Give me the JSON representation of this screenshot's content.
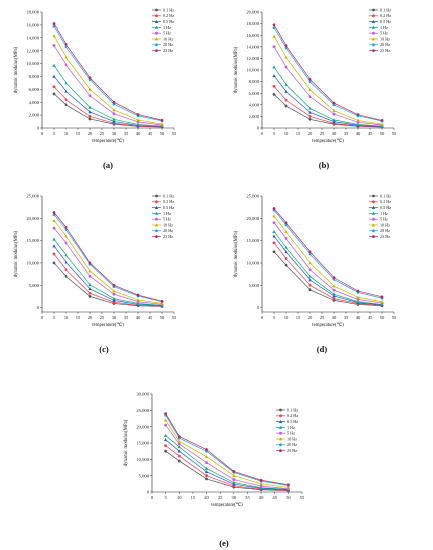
{
  "legend": [
    "0.1 Hz",
    "0.2 Hz",
    "0.5 Hz",
    "1 Hz",
    "5 Hz",
    "10 Hz",
    "20 Hz",
    "25 Hz"
  ],
  "colors": [
    "#555555",
    "#e8435a",
    "#2b59c3",
    "#17a689",
    "#c45ad9",
    "#c8b400",
    "#2ba0d8",
    "#b03060"
  ],
  "chart_data": [
    {
      "type": "line",
      "panel_label": "(a)",
      "xlabel": "temperature(℃)",
      "ylabel": "dynamic modulus(MPa)",
      "xlim": [
        0,
        55
      ],
      "ylim": [
        0,
        18000
      ],
      "xticks": [
        0,
        5,
        10,
        15,
        20,
        25,
        30,
        35,
        40,
        45,
        50,
        55
      ],
      "yticks": [
        0,
        2000,
        4000,
        6000,
        8000,
        10000,
        12000,
        14000,
        16000,
        18000
      ],
      "ytick_labels": [
        "0",
        "2,000",
        "4,000",
        "6,000",
        "8,000",
        "10,000",
        "12,000",
        "14,000",
        "16,000",
        "18,000"
      ],
      "x": [
        5,
        10,
        20,
        30,
        40,
        50
      ],
      "series": [
        {
          "name": "0.1 Hz",
          "values": [
            5300,
            3600,
            1400,
            600,
            250,
            150
          ]
        },
        {
          "name": "0.2 Hz",
          "values": [
            6400,
            4400,
            1800,
            750,
            300,
            180
          ]
        },
        {
          "name": "0.5 Hz",
          "values": [
            8000,
            5700,
            2500,
            1000,
            400,
            220
          ]
        },
        {
          "name": "1 Hz",
          "values": [
            9700,
            7000,
            3200,
            1350,
            550,
            300
          ]
        },
        {
          "name": "5 Hz",
          "values": [
            12800,
            9800,
            5000,
            2200,
            950,
            450
          ]
        },
        {
          "name": "10 Hz",
          "values": [
            14300,
            11000,
            6000,
            2800,
            1250,
            600
          ]
        },
        {
          "name": "20 Hz",
          "values": [
            15800,
            12600,
            7500,
            3700,
            1900,
            1100
          ]
        },
        {
          "name": "25 Hz",
          "values": [
            16200,
            13000,
            7800,
            4000,
            2100,
            1200
          ]
        }
      ]
    },
    {
      "type": "line",
      "panel_label": "(b)",
      "xlabel": "temperature(℃)",
      "ylabel": "dynamic modulus(MPa)",
      "xlim": [
        0,
        55
      ],
      "ylim": [
        0,
        20000
      ],
      "xticks": [
        0,
        5,
        10,
        15,
        20,
        25,
        30,
        35,
        40,
        45,
        50,
        55
      ],
      "yticks": [
        0,
        2000,
        4000,
        6000,
        8000,
        10000,
        12000,
        14000,
        16000,
        18000,
        20000
      ],
      "ytick_labels": [
        "0",
        "2,000",
        "4,000",
        "6,000",
        "8,000",
        "10,000",
        "12,000",
        "14,000",
        "16,000",
        "18,000",
        "20,000"
      ],
      "x": [
        5,
        10,
        20,
        30,
        40,
        50
      ],
      "series": [
        {
          "name": "0.1 Hz",
          "values": [
            5800,
            3800,
            1500,
            650,
            300,
            170
          ]
        },
        {
          "name": "0.2 Hz",
          "values": [
            7200,
            4800,
            2000,
            800,
            350,
            200
          ]
        },
        {
          "name": "0.5 Hz",
          "values": [
            9000,
            6300,
            2700,
            1100,
            450,
            250
          ]
        },
        {
          "name": "1 Hz",
          "values": [
            10500,
            7500,
            3400,
            1400,
            600,
            330
          ]
        },
        {
          "name": "5 Hz",
          "values": [
            14000,
            10500,
            5400,
            2400,
            1000,
            500
          ]
        },
        {
          "name": "10 Hz",
          "values": [
            15800,
            12200,
            6600,
            3000,
            1300,
            650
          ]
        },
        {
          "name": "20 Hz",
          "values": [
            17300,
            13800,
            8000,
            4000,
            2100,
            1200
          ]
        },
        {
          "name": "25 Hz",
          "values": [
            17800,
            14200,
            8400,
            4300,
            2300,
            1300
          ]
        }
      ]
    },
    {
      "type": "line",
      "panel_label": "(c)",
      "xlabel": "temperature(℃)",
      "ylabel": "dynamic modulus(MPa)",
      "xlim": [
        0,
        55
      ],
      "ylim": [
        -1000,
        25000
      ],
      "xticks": [
        0,
        5,
        10,
        15,
        20,
        25,
        30,
        35,
        40,
        45,
        50,
        55
      ],
      "yticks": [
        0,
        5000,
        10000,
        15000,
        20000,
        25000
      ],
      "ytick_labels": [
        "0",
        "5,000",
        "10,000",
        "15,000",
        "20,000",
        "25,000"
      ],
      "x": [
        5,
        10,
        20,
        30,
        40,
        50
      ],
      "series": [
        {
          "name": "0.1 Hz",
          "values": [
            10000,
            7000,
            2500,
            900,
            400,
            250
          ]
        },
        {
          "name": "0.2 Hz",
          "values": [
            12000,
            8500,
            3200,
            1200,
            500,
            300
          ]
        },
        {
          "name": "0.5 Hz",
          "values": [
            13800,
            10200,
            4200,
            1600,
            700,
            400
          ]
        },
        {
          "name": "1 Hz",
          "values": [
            15300,
            11800,
            5100,
            2000,
            900,
            500
          ]
        },
        {
          "name": "5 Hz",
          "values": [
            17800,
            14500,
            7000,
            3000,
            1300,
            700
          ]
        },
        {
          "name": "10 Hz",
          "values": [
            19500,
            16000,
            8200,
            3700,
            1700,
            900
          ]
        },
        {
          "name": "20 Hz",
          "values": [
            20800,
            17500,
            9700,
            4700,
            2600,
            1300
          ]
        },
        {
          "name": "25 Hz",
          "values": [
            21300,
            18000,
            10000,
            5000,
            2800,
            1400
          ]
        }
      ]
    },
    {
      "type": "line",
      "panel_label": "(d)",
      "xlabel": "temperature(℃)",
      "ylabel": "dynamic modulus(MPa)",
      "xlim": [
        0,
        55
      ],
      "ylim": [
        -1000,
        25000
      ],
      "xticks": [
        0,
        5,
        10,
        15,
        20,
        25,
        30,
        35,
        40,
        45,
        50,
        55
      ],
      "yticks": [
        0,
        5000,
        10000,
        15000,
        20000,
        25000
      ],
      "ytick_labels": [
        "0",
        "5,000",
        "10,000",
        "15,000",
        "20,000",
        "25,000"
      ],
      "x": [
        5,
        10,
        20,
        30,
        40,
        50
      ],
      "series": [
        {
          "name": "0.1 Hz",
          "values": [
            12500,
            9500,
            4000,
            1600,
            700,
            400
          ]
        },
        {
          "name": "0.2 Hz",
          "values": [
            14500,
            11000,
            5000,
            2000,
            900,
            500
          ]
        },
        {
          "name": "0.5 Hz",
          "values": [
            16000,
            12500,
            6200,
            2600,
            1100,
            600
          ]
        },
        {
          "name": "1 Hz",
          "values": [
            17000,
            13500,
            7000,
            3000,
            1300,
            700
          ]
        },
        {
          "name": "5 Hz",
          "values": [
            19000,
            15500,
            8500,
            3900,
            1800,
            1000
          ]
        },
        {
          "name": "10 Hz",
          "values": [
            20500,
            17000,
            10000,
            4800,
            2300,
            1300
          ]
        },
        {
          "name": "20 Hz",
          "values": [
            21800,
            18500,
            12000,
            6300,
            3400,
            2100
          ]
        },
        {
          "name": "25 Hz",
          "values": [
            22200,
            19000,
            12500,
            6700,
            3700,
            2400
          ]
        }
      ]
    },
    {
      "type": "line",
      "panel_label": "(e)",
      "xlabel": "temperature(℃)",
      "ylabel": "dynamic modulus(MPa)",
      "xlim": [
        0,
        55
      ],
      "ylim": [
        0,
        30000
      ],
      "xticks": [
        0,
        5,
        10,
        15,
        20,
        25,
        30,
        35,
        40,
        45,
        50,
        55
      ],
      "yticks": [
        0,
        5000,
        10000,
        15000,
        20000,
        25000,
        30000
      ],
      "ytick_labels": [
        "0",
        "5,000",
        "10,000",
        "15,000",
        "20,000",
        "25,000",
        "30,000"
      ],
      "x": [
        5,
        10,
        20,
        30,
        40,
        50
      ],
      "series": [
        {
          "name": "0.1 Hz",
          "values": [
            12500,
            9500,
            4000,
            1500,
            700,
            400
          ]
        },
        {
          "name": "0.2 Hz",
          "values": [
            14200,
            11000,
            5000,
            1900,
            850,
            500
          ]
        },
        {
          "name": "0.5 Hz",
          "values": [
            16000,
            12500,
            6200,
            2400,
            1100,
            650
          ]
        },
        {
          "name": "1 Hz",
          "values": [
            17300,
            13800,
            7200,
            2900,
            1300,
            800
          ]
        },
        {
          "name": "5 Hz",
          "values": [
            20500,
            14700,
            9000,
            3800,
            1800,
            1000
          ]
        },
        {
          "name": "10 Hz",
          "values": [
            22000,
            15500,
            10800,
            5000,
            2500,
            1400
          ]
        },
        {
          "name": "20 Hz",
          "values": [
            23500,
            16500,
            12500,
            6000,
            3300,
            2000
          ]
        },
        {
          "name": "25 Hz",
          "values": [
            24000,
            17000,
            13000,
            6300,
            3600,
            2200
          ]
        }
      ]
    }
  ]
}
